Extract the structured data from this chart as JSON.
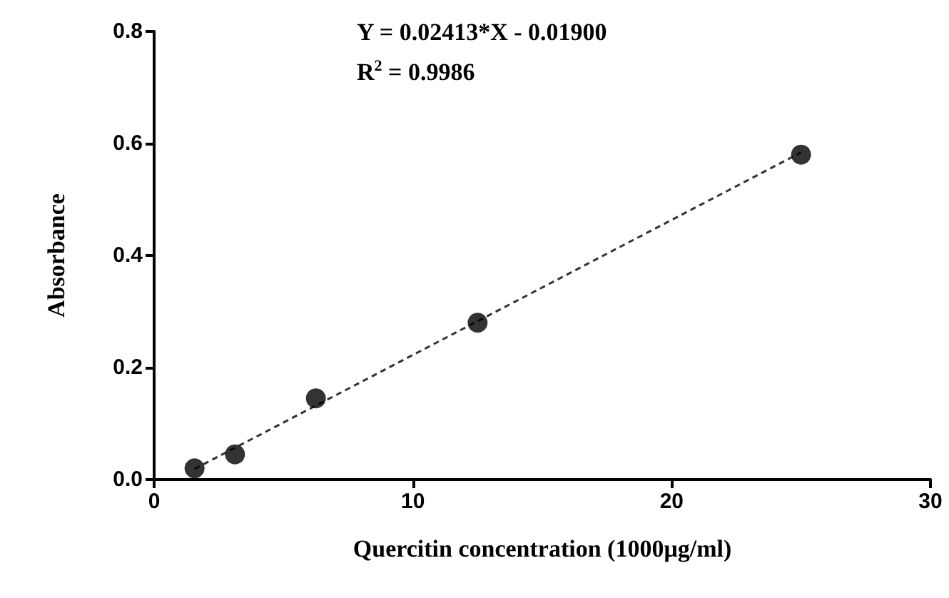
{
  "chart_data": {
    "type": "scatter",
    "xlabel": "Quercitin concentration (1000μg/ml)",
    "ylabel": "Absorbance",
    "annotations": [
      "Y = 0.02413*X - 0.01900",
      "R$^{2}$ = 0.9986"
    ],
    "xlim": [
      0,
      30
    ],
    "xticks": [
      0,
      10,
      20,
      30
    ],
    "ylim": [
      0,
      0.8
    ],
    "yticks": [
      {
        "value": 0,
        "label": "0.0"
      },
      {
        "value": 0.2,
        "label": "0.2"
      },
      {
        "value": 0.4,
        "label": "0.4"
      },
      {
        "value": 0.6,
        "label": "0.6"
      },
      {
        "value": 0.8,
        "label": "0.8"
      }
    ],
    "grid": false,
    "series": [
      {
        "color": "#000000",
        "marker": "circle",
        "x": [
          1.5625,
          3.125,
          6.25,
          12.5,
          25
        ],
        "values": [
          0.02,
          0.045,
          0.145,
          0.28,
          0.58
        ]
      },
      {
        "type": "line",
        "color": "#333333",
        "line_style": "dashed",
        "x": [
          1.5625,
          25
        ],
        "values": [
          0.019,
          0.584
        ]
      }
    ]
  }
}
